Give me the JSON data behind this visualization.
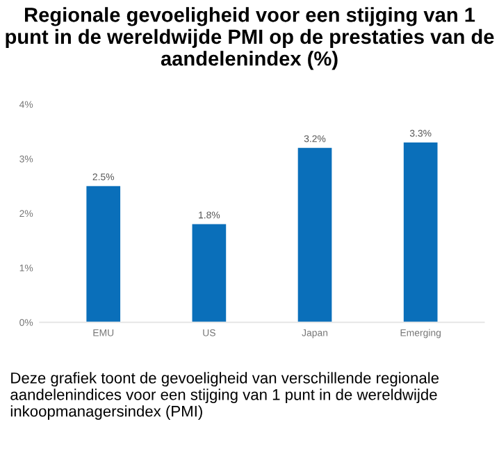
{
  "chart_data": {
    "type": "bar",
    "title": "Regionale gevoeligheid voor een stijging van 1 punt in de wereldwijde PMI op de prestaties van de aandelenindex (%)",
    "categories": [
      "EMU",
      "US",
      "Japan",
      "Emerging"
    ],
    "values": [
      2.5,
      1.8,
      3.2,
      3.3
    ],
    "value_labels": [
      "2.5%",
      "1.8%",
      "3.2%",
      "3.3%"
    ],
    "color": "#0a6fba",
    "ylim": [
      0,
      4
    ],
    "yticks": [
      {
        "value": 0,
        "label": "0%"
      },
      {
        "value": 1,
        "label": "1%"
      },
      {
        "value": 2,
        "label": "2%"
      },
      {
        "value": 3,
        "label": "3%"
      },
      {
        "value": 4,
        "label": "4%"
      }
    ],
    "grid": false,
    "annotations": [
      "Deze grafiek toont de gevoeligheid van verschillende regionale aandelenindices voor een stijging van 1 punt in de wereldwijde inkoopmanagersindex (PMI)"
    ]
  }
}
